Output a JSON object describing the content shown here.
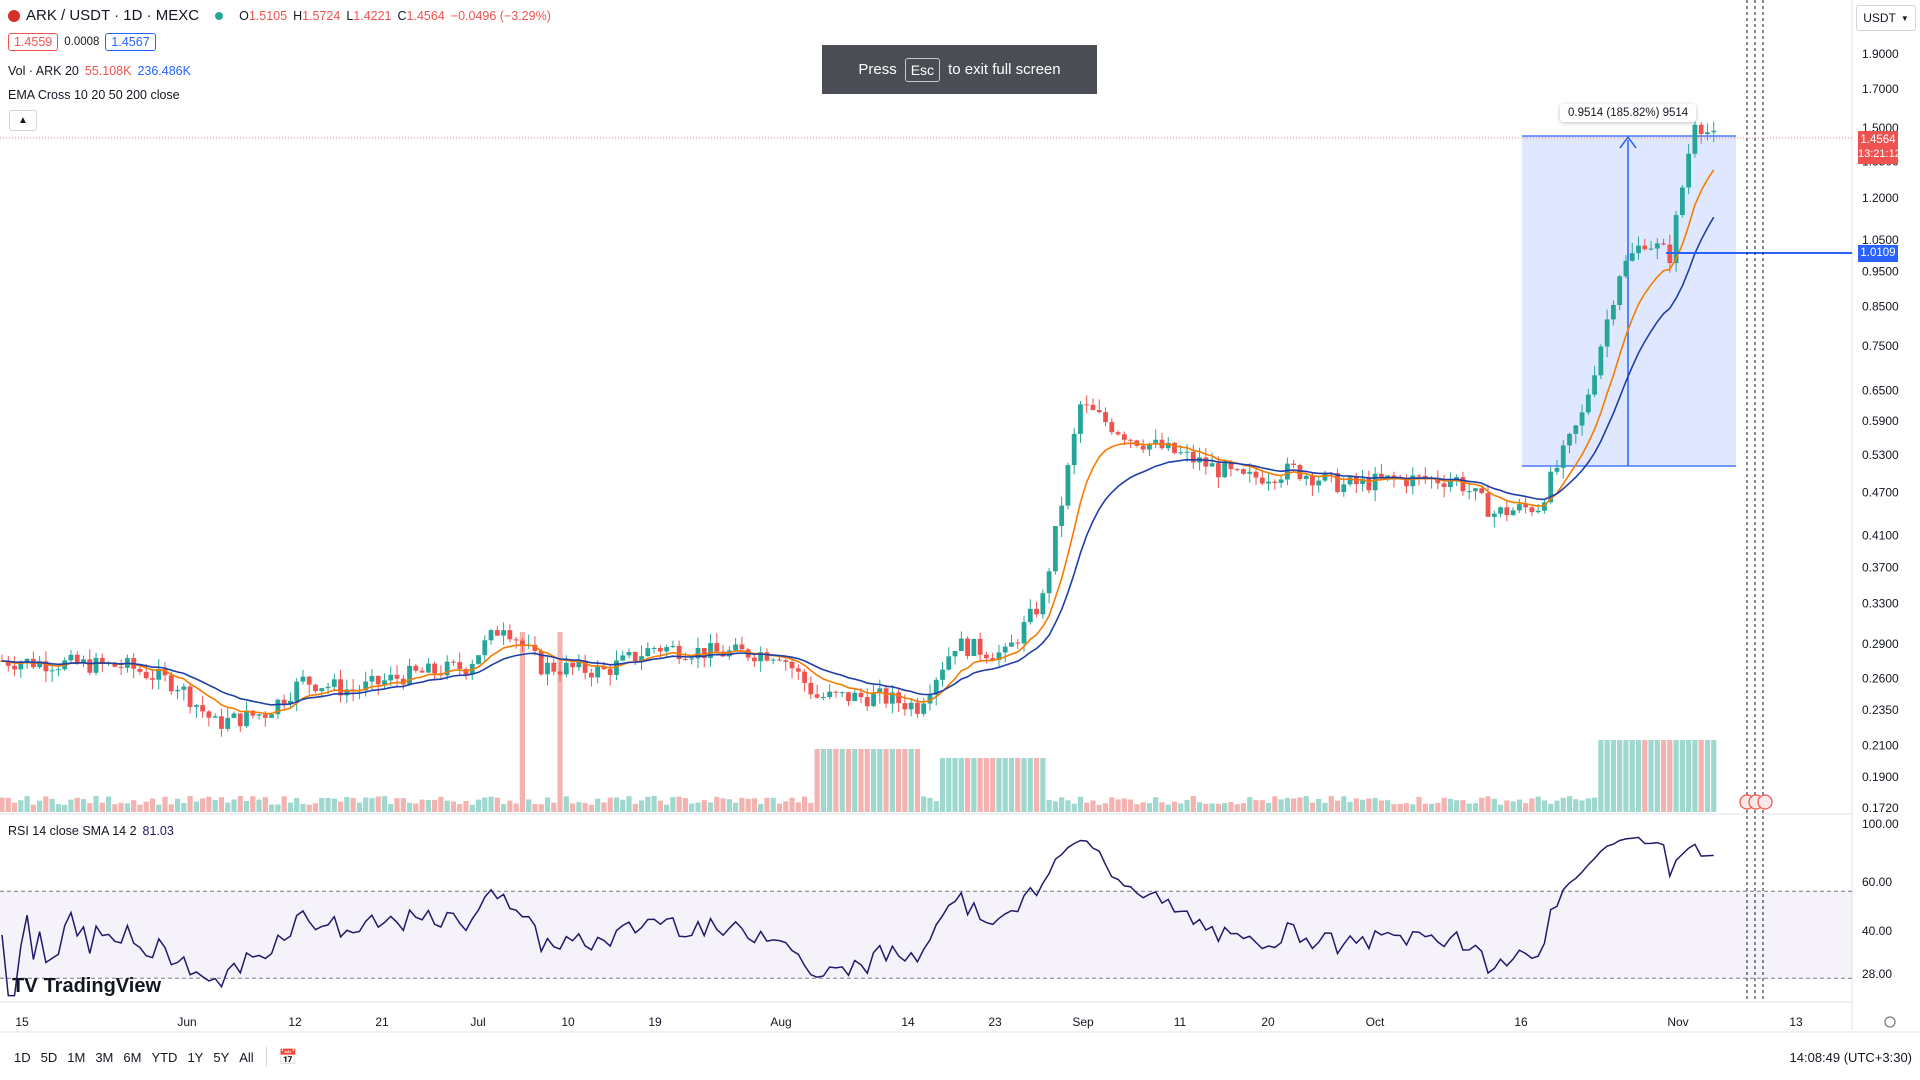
{
  "legend": {
    "symbol": "ARK / USDT · 1D · MEXC",
    "open_label": "O",
    "open": "1.5105",
    "high_label": "H",
    "high": "1.5724",
    "low_label": "L",
    "low": "1.4221",
    "close_label": "C",
    "close": "1.4564",
    "change": "−0.0496 (−3.29%)",
    "bid": "1.4559",
    "spread": "0.0008",
    "ask": "1.4567",
    "vol_label": "Vol · ARK 20",
    "vol_value": "55.108K",
    "vol_ma": "236.486K",
    "ema_label": "EMA Cross 10 20 50 200 close"
  },
  "toast": {
    "prefix": "Press",
    "key": "Esc",
    "suffix": "to exit full screen"
  },
  "currency_button": "USDT",
  "measure_label": "0.9514 (185.82%) 9514",
  "price_axis": [
    "1.9000",
    "1.7000",
    "1.5000",
    "1.3500",
    "1.2000",
    "1.0500",
    "0.9500",
    "0.8500",
    "0.7500",
    "0.6500",
    "0.5900",
    "0.5300",
    "0.4700",
    "0.4100",
    "0.3700",
    "0.3300",
    "0.2900",
    "0.2600",
    "0.2350",
    "0.2100",
    "0.1900",
    "0.1720"
  ],
  "current_price": {
    "price": "1.4564",
    "countdown": "13:21:12",
    "color": "#ef5350"
  },
  "hline_price": {
    "price": "1.0109",
    "color": "#2962ff"
  },
  "rsi": {
    "label": "RSI 14 close SMA 14 2",
    "value": "81.03",
    "axis": [
      "100.00",
      "60.00",
      "40.00",
      "28.00"
    ]
  },
  "time_axis": [
    "15",
    "Jun",
    "12",
    "21",
    "Jul",
    "10",
    "19",
    "Aug",
    "14",
    "23",
    "Sep",
    "11",
    "20",
    "Oct",
    "16",
    "Nov",
    "13"
  ],
  "timeframes": [
    "1D",
    "5D",
    "1M",
    "3M",
    "6M",
    "YTD",
    "1Y",
    "5Y",
    "All"
  ],
  "clock": "14:08:49 (UTC+3:30)",
  "brand": "TradingView",
  "colors": {
    "up": "#26a69a",
    "down": "#ef5350",
    "ema_fast": "#f57c00",
    "ema_slow": "#1e3fa8",
    "rsi_line": "#1f1b6b"
  }
}
